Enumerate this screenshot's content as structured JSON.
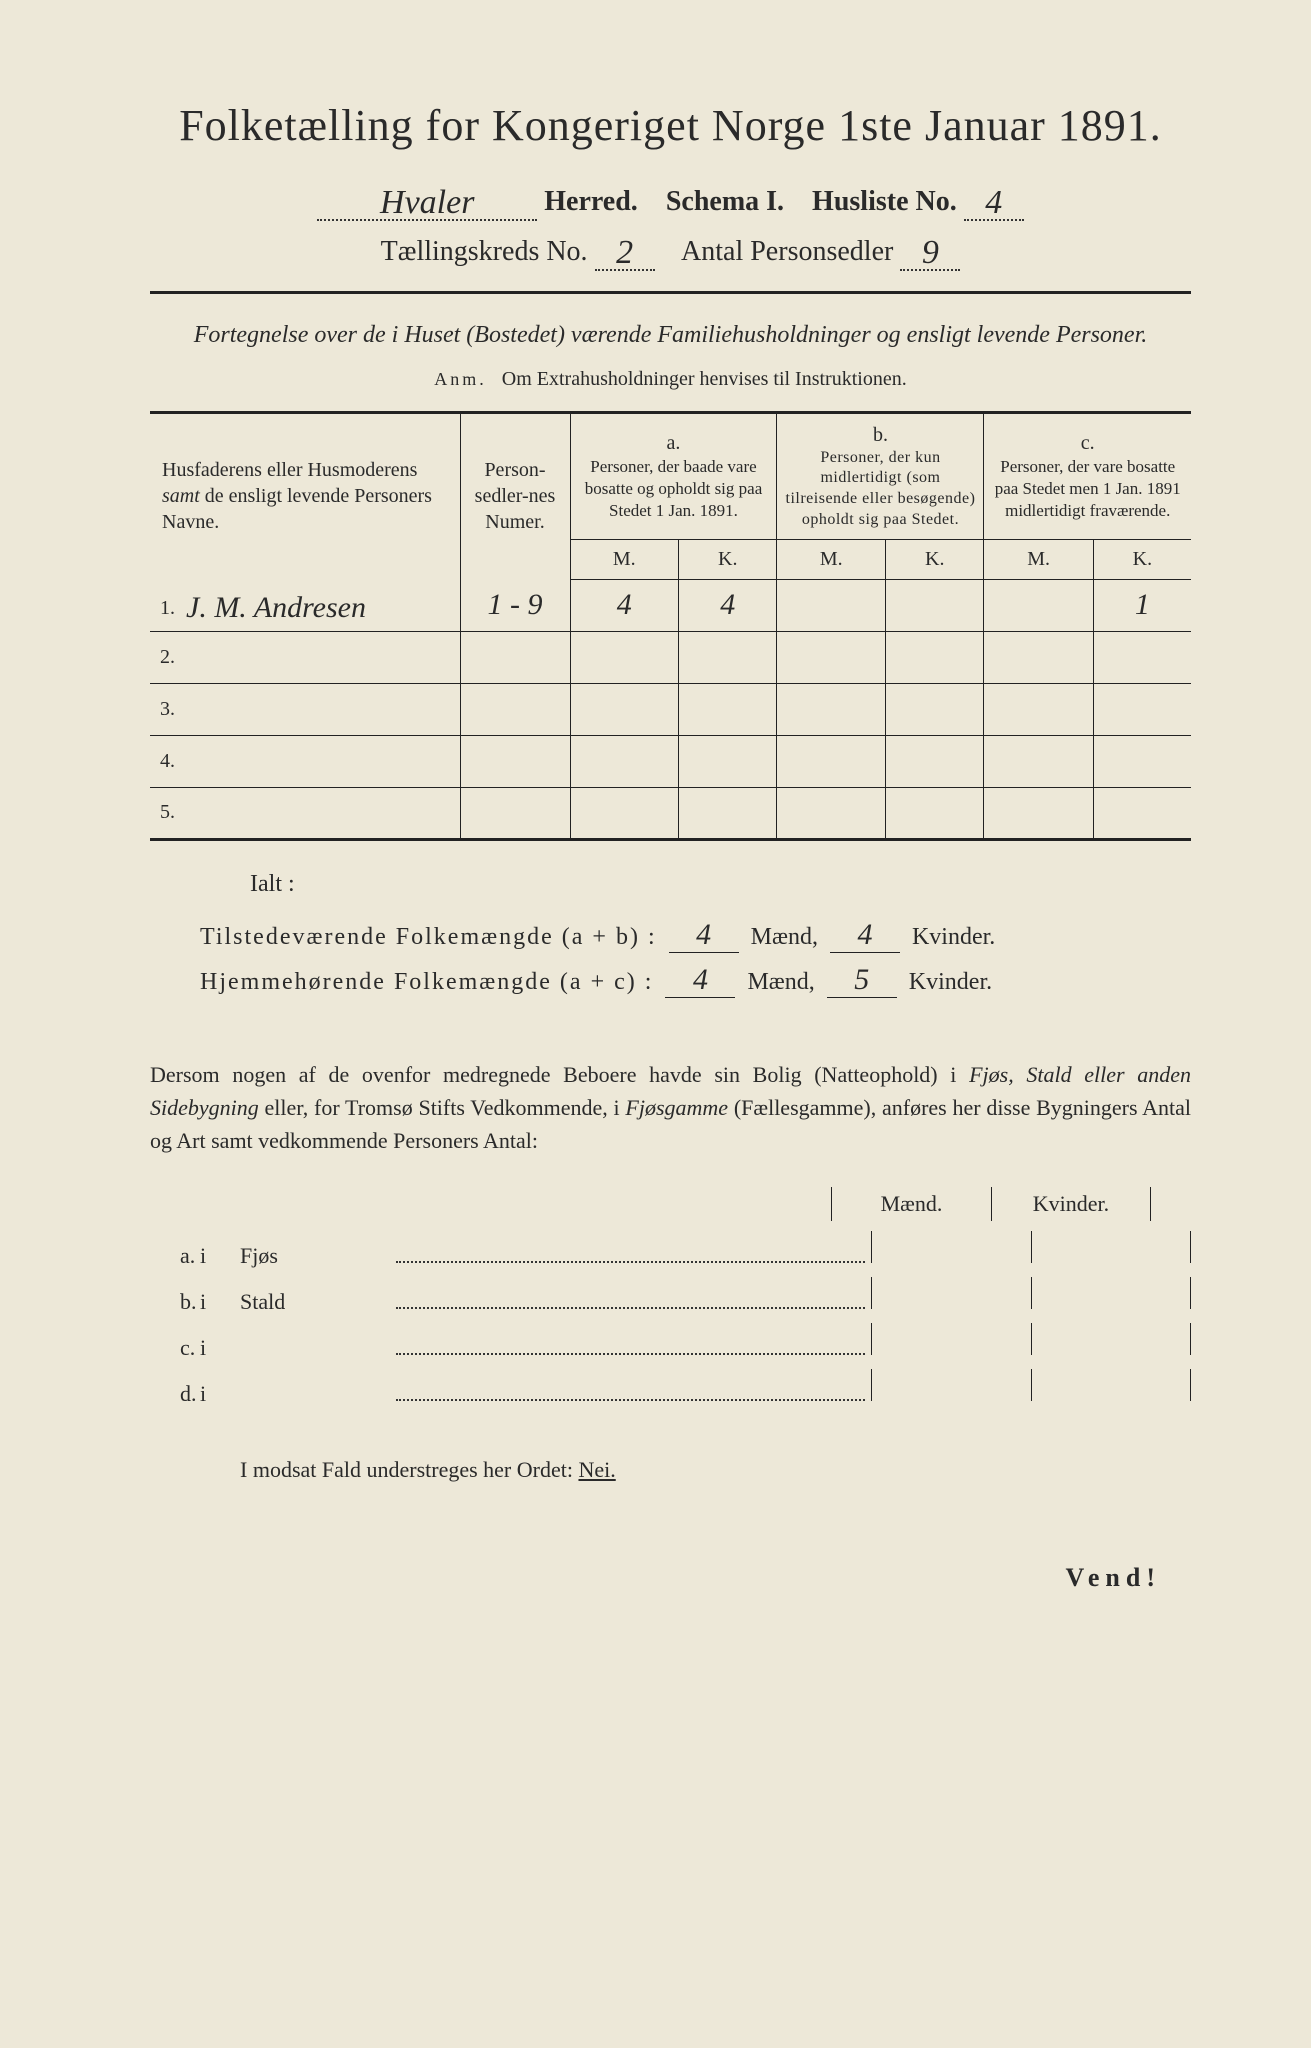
{
  "title": "Folketælling for Kongeriget Norge 1ste Januar 1891.",
  "header": {
    "herred_value": "Hvaler",
    "herred_label": "Herred.",
    "schema_label": "Schema I.",
    "husliste_label": "Husliste No.",
    "husliste_value": "4",
    "kreds_label": "Tællingskreds No.",
    "kreds_value": "2",
    "antal_label": "Antal Personsedler",
    "antal_value": "9"
  },
  "subtitle": "Fortegnelse over de i Huset (Bostedet) værende Familiehusholdninger og ensligt levende Personer.",
  "anm_label": "Anm.",
  "anm_text": "Om Extrahusholdninger henvises til Instruktionen.",
  "columns": {
    "names": "Husfaderens eller Husmoderens samt de ensligt levende Personers Navne.",
    "numer": "Person-sedler-nes Numer.",
    "a_label": "a.",
    "a_text": "Personer, der baade vare bosatte og opholdt sig paa Stedet 1 Jan. 1891.",
    "b_label": "b.",
    "b_text": "Personer, der kun midlertidigt (som tilreisende eller besøgende) opholdt sig paa Stedet.",
    "c_label": "c.",
    "c_text": "Personer, der vare bosatte paa Stedet men 1 Jan. 1891 midlertidigt fraværende.",
    "M": "M.",
    "K": "K."
  },
  "rows": [
    {
      "n": "1.",
      "name": "J. M. Andresen",
      "numer": "1 - 9",
      "aM": "4",
      "aK": "4",
      "bM": "",
      "bK": "",
      "cM": "",
      "cK": "1"
    },
    {
      "n": "2.",
      "name": "",
      "numer": "",
      "aM": "",
      "aK": "",
      "bM": "",
      "bK": "",
      "cM": "",
      "cK": ""
    },
    {
      "n": "3.",
      "name": "",
      "numer": "",
      "aM": "",
      "aK": "",
      "bM": "",
      "bK": "",
      "cM": "",
      "cK": ""
    },
    {
      "n": "4.",
      "name": "",
      "numer": "",
      "aM": "",
      "aK": "",
      "bM": "",
      "bK": "",
      "cM": "",
      "cK": ""
    },
    {
      "n": "5.",
      "name": "",
      "numer": "",
      "aM": "",
      "aK": "",
      "bM": "",
      "bK": "",
      "cM": "",
      "cK": ""
    }
  ],
  "ialt": "Ialt :",
  "totals": {
    "line1_label": "Tilstedeværende Folkemængde (a + b) :",
    "line1_m": "4",
    "line1_k": "4",
    "line2_label": "Hjemmehørende Folkemængde (a + c) :",
    "line2_m": "4",
    "line2_k": "5",
    "maend": "Mænd,",
    "kvinder": "Kvinder."
  },
  "para": "Dersom nogen af de ovenfor medregnede Beboere havde sin Bolig (Natteophold) i Fjøs, Stald eller anden Sidebygning eller, for Tromsø Stifts Vedkommende, i Fjøsgamme (Fællesgamme), anføres her disse Bygningers Antal og Art samt vedkommende Personers Antal:",
  "mk_headers": {
    "m": "Mænd.",
    "k": "Kvinder."
  },
  "buildings": [
    {
      "l": "a.",
      "i": "i",
      "name": "Fjøs"
    },
    {
      "l": "b.",
      "i": "i",
      "name": "Stald"
    },
    {
      "l": "c.",
      "i": "i",
      "name": ""
    },
    {
      "l": "d.",
      "i": "i",
      "name": ""
    }
  ],
  "modsat": {
    "pre": "I modsat Fald understreges her Ordet:",
    "nei": "Nei."
  },
  "vend": "Vend!",
  "colors": {
    "paper": "#ede8d8",
    "ink": "#2a2a2a",
    "border": "#222222"
  }
}
